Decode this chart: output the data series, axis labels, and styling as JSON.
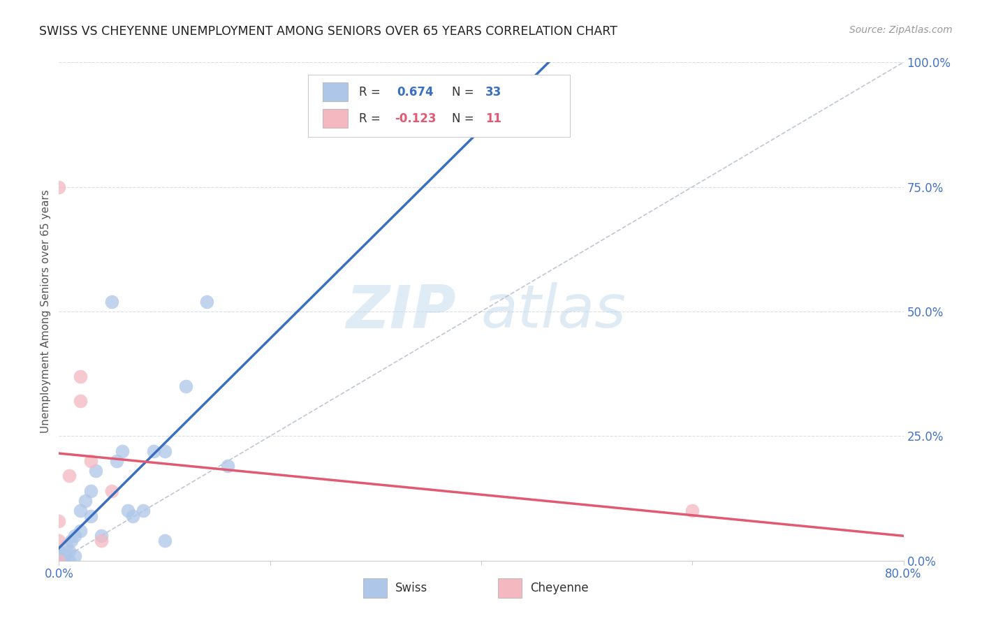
{
  "title": "SWISS VS CHEYENNE UNEMPLOYMENT AMONG SENIORS OVER 65 YEARS CORRELATION CHART",
  "source": "Source: ZipAtlas.com",
  "ylabel": "Unemployment Among Seniors over 65 years",
  "xlim": [
    0.0,
    0.8
  ],
  "ylim": [
    0.0,
    1.0
  ],
  "xticks": [
    0.0,
    0.2,
    0.4,
    0.6,
    0.8
  ],
  "xticklabels": [
    "0.0%",
    "",
    "",
    "",
    "80.0%"
  ],
  "yticks": [
    0.0,
    0.25,
    0.5,
    0.75,
    1.0
  ],
  "yticklabels": [
    "0.0%",
    "25.0%",
    "50.0%",
    "75.0%",
    "100.0%"
  ],
  "swiss_color": "#aec6e8",
  "cheyenne_color": "#f4b8c1",
  "swiss_line_color": "#3a6fbf",
  "cheyenne_line_color": "#e05a72",
  "diagonal_color": "#b0b8c8",
  "swiss_R": 0.674,
  "swiss_N": 33,
  "cheyenne_R": -0.123,
  "cheyenne_N": 11,
  "swiss_x": [
    0.0,
    0.0,
    0.0,
    0.0,
    0.0,
    0.0,
    0.005,
    0.005,
    0.007,
    0.01,
    0.01,
    0.012,
    0.015,
    0.015,
    0.02,
    0.02,
    0.025,
    0.03,
    0.03,
    0.035,
    0.04,
    0.05,
    0.055,
    0.06,
    0.065,
    0.07,
    0.08,
    0.09,
    0.1,
    0.1,
    0.12,
    0.14,
    0.16
  ],
  "swiss_y": [
    0.0,
    0.0,
    0.0,
    0.01,
    0.01,
    0.02,
    0.0,
    0.01,
    0.03,
    0.0,
    0.02,
    0.04,
    0.01,
    0.05,
    0.06,
    0.1,
    0.12,
    0.09,
    0.14,
    0.18,
    0.05,
    0.52,
    0.2,
    0.22,
    0.1,
    0.09,
    0.1,
    0.22,
    0.04,
    0.22,
    0.35,
    0.52,
    0.19
  ],
  "cheyenne_x": [
    0.0,
    0.0,
    0.0,
    0.0,
    0.01,
    0.02,
    0.02,
    0.03,
    0.04,
    0.05,
    0.6
  ],
  "cheyenne_y": [
    0.0,
    0.04,
    0.08,
    0.75,
    0.17,
    0.32,
    0.37,
    0.2,
    0.04,
    0.14,
    0.1
  ],
  "watermark_zip": "ZIP",
  "watermark_atlas": "atlas",
  "background_color": "#ffffff",
  "grid_color": "#d8dde6",
  "tick_color": "#4472c4",
  "label_color": "#555555"
}
